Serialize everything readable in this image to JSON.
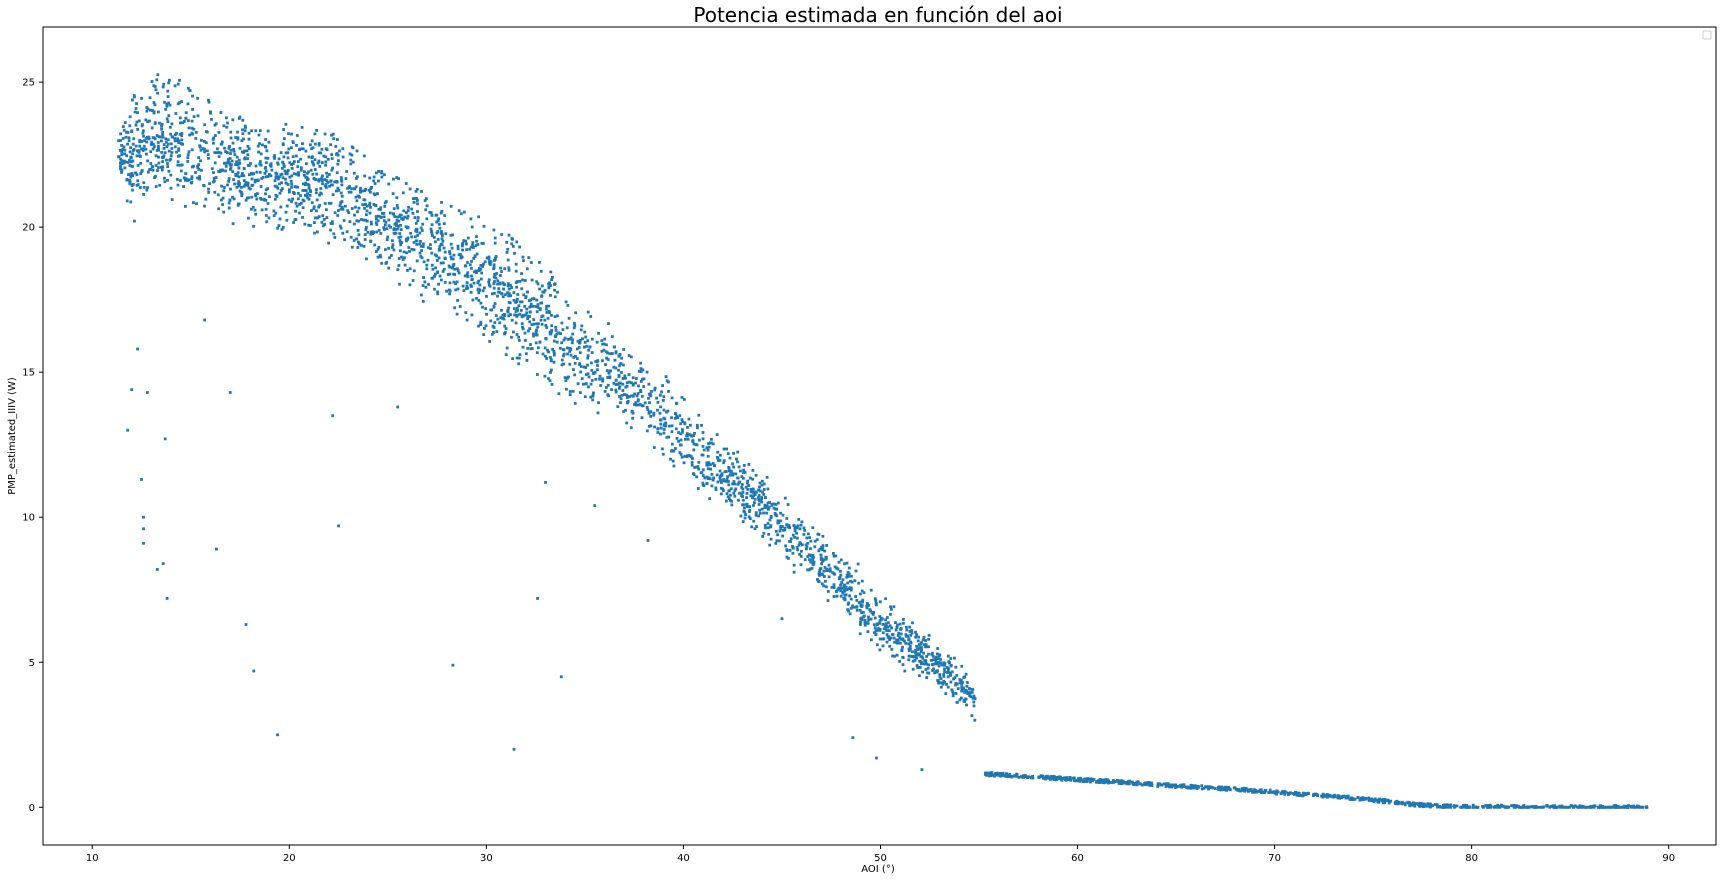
{
  "chart_data": {
    "type": "scatter",
    "title": "Potencia estimada en función del aoi",
    "xlabel": "AOI (°)",
    "ylabel": "PMP_estimated_IIIV (W)",
    "xlim": [
      7.5,
      92.4
    ],
    "ylim": [
      -1.3,
      26.9
    ],
    "xticks": [
      10,
      20,
      30,
      40,
      50,
      60,
      70,
      80,
      90
    ],
    "yticks": [
      0,
      5,
      10,
      15,
      20,
      25
    ],
    "grid": false,
    "legend": "top-right (empty)",
    "marker_color": "#1f77b4",
    "series": [
      {
        "band": [
          [
            11.3,
            21.8,
            23.2
          ],
          [
            12.0,
            19.8,
            24.5
          ],
          [
            13.0,
            20.2,
            25.3
          ],
          [
            14.0,
            20.0,
            25.2
          ],
          [
            15.0,
            19.8,
            25.0
          ],
          [
            16.0,
            19.8,
            24.6
          ],
          [
            17.0,
            19.6,
            24.2
          ],
          [
            18.0,
            19.6,
            23.6
          ],
          [
            19.0,
            19.5,
            23.4
          ],
          [
            20.0,
            19.4,
            23.6
          ],
          [
            22.0,
            18.9,
            23.4
          ],
          [
            24.0,
            18.2,
            22.4
          ],
          [
            26.0,
            17.6,
            21.5
          ],
          [
            28.0,
            16.8,
            20.8
          ],
          [
            30.0,
            15.6,
            20.3
          ],
          [
            32.0,
            14.5,
            19.3
          ],
          [
            34.0,
            13.6,
            18.1
          ],
          [
            36.0,
            13.0,
            17.2
          ],
          [
            38.0,
            12.4,
            16.0
          ],
          [
            40.0,
            11.0,
            14.5
          ],
          [
            42.0,
            9.8,
            13.2
          ],
          [
            44.0,
            8.8,
            12.0
          ],
          [
            46.0,
            7.6,
            10.6
          ],
          [
            48.0,
            6.4,
            9.2
          ],
          [
            50.0,
            5.0,
            7.6
          ],
          [
            52.0,
            4.2,
            6.5
          ],
          [
            53.0,
            3.8,
            5.8
          ],
          [
            54.0,
            3.3,
            5.2
          ],
          [
            54.8,
            2.8,
            4.2
          ]
        ],
        "tail": [
          [
            55.3,
            1.15
          ],
          [
            58.0,
            1.05
          ],
          [
            60.0,
            0.95
          ],
          [
            62.0,
            0.88
          ],
          [
            64.0,
            0.78
          ],
          [
            66.0,
            0.7
          ],
          [
            68.0,
            0.62
          ],
          [
            70.0,
            0.52
          ],
          [
            72.0,
            0.42
          ],
          [
            74.0,
            0.32
          ],
          [
            75.0,
            0.25
          ],
          [
            77.0,
            0.1
          ],
          [
            79.0,
            0.02
          ],
          [
            88.9,
            0.0
          ]
        ],
        "outliers": [
          [
            11.8,
            13.0
          ],
          [
            12.0,
            14.4
          ],
          [
            12.3,
            15.8
          ],
          [
            12.5,
            11.3
          ],
          [
            12.6,
            10.0
          ],
          [
            12.6,
            9.6
          ],
          [
            12.6,
            9.1
          ],
          [
            12.8,
            14.3
          ],
          [
            13.3,
            8.2
          ],
          [
            13.6,
            8.4
          ],
          [
            13.7,
            12.7
          ],
          [
            13.8,
            7.2
          ],
          [
            15.7,
            16.8
          ],
          [
            16.3,
            8.9
          ],
          [
            17.0,
            14.3
          ],
          [
            17.8,
            6.3
          ],
          [
            18.2,
            4.7
          ],
          [
            19.4,
            2.5
          ],
          [
            22.5,
            9.7
          ],
          [
            22.2,
            13.5
          ],
          [
            25.5,
            13.8
          ],
          [
            28.3,
            4.9
          ],
          [
            31.4,
            2.0
          ],
          [
            32.6,
            7.2
          ],
          [
            33.0,
            11.2
          ],
          [
            33.8,
            4.5
          ],
          [
            35.5,
            10.4
          ],
          [
            38.2,
            9.2
          ],
          [
            45.0,
            6.5
          ],
          [
            48.6,
            2.4
          ],
          [
            49.8,
            1.7
          ],
          [
            52.1,
            1.3
          ]
        ]
      }
    ]
  }
}
